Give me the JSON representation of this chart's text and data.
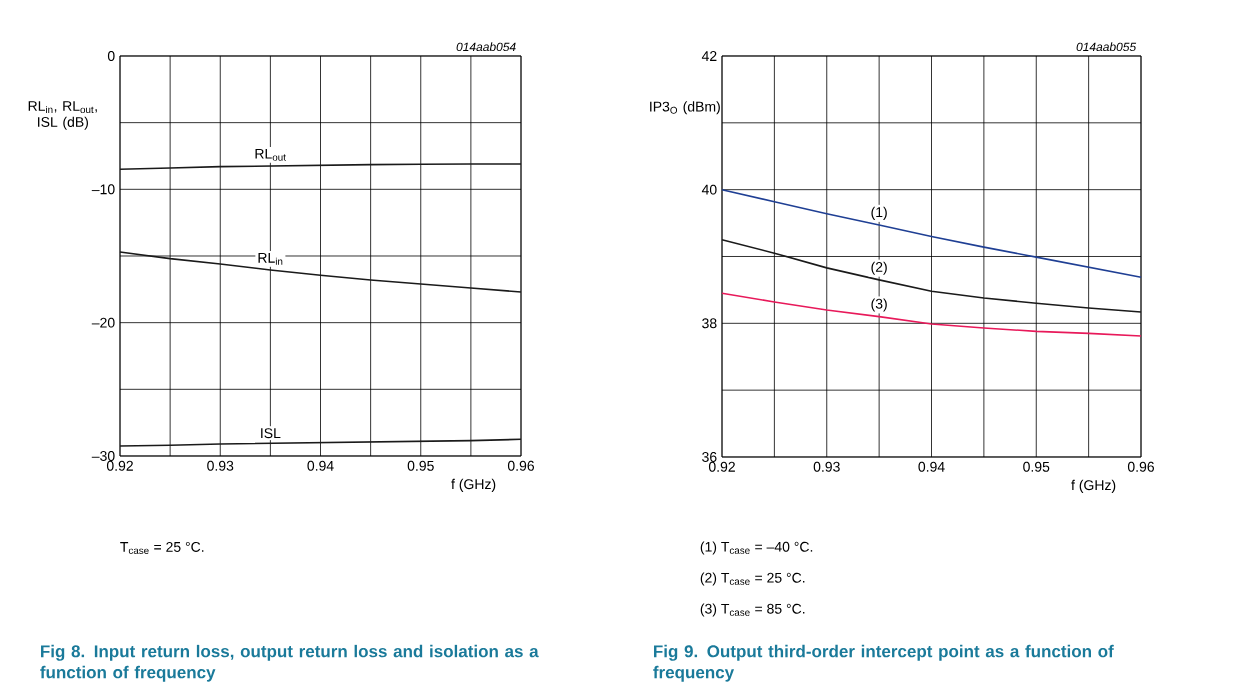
{
  "chart_data": [
    {
      "type": "line",
      "title": "Fig 8. Input return loss, output return loss and isolation as a function of frequency",
      "xlabel": "f (GHz)",
      "ylabel": "RL$_{in}$, RL$_{out}$, ISL (dB)",
      "x": [
        0.92,
        0.925,
        0.93,
        0.935,
        0.94,
        0.945,
        0.95,
        0.955,
        0.96
      ],
      "series": [
        {
          "name": "RL$_{out}$",
          "color": "#1a1a1a",
          "values": [
            -8.5,
            -8.4,
            -8.3,
            -8.25,
            -8.2,
            -8.15,
            -8.12,
            -8.1,
            -8.1
          ]
        },
        {
          "name": "RL$_{in}$",
          "color": "#1a1a1a",
          "values": [
            -14.7,
            -15.2,
            -15.6,
            -16.05,
            -16.45,
            -16.8,
            -17.1,
            -17.4,
            -17.7
          ]
        },
        {
          "name": "ISL",
          "color": "#1a1a1a",
          "values": [
            -29.25,
            -29.2,
            -29.1,
            -29.05,
            -29.0,
            -28.95,
            -28.9,
            -28.85,
            -28.75
          ]
        }
      ],
      "xlim": [
        0.92,
        0.96
      ],
      "ylim": [
        -30,
        0
      ],
      "xticks": [
        0.92,
        {
          "value": 0.925,
          "label": null
        },
        0.93,
        {
          "value": 0.935,
          "label": null
        },
        0.94,
        {
          "value": 0.945,
          "label": null
        },
        0.95,
        {
          "value": 0.955,
          "label": null
        },
        0.96
      ],
      "yticks": [
        {
          "value": -30,
          "label": "–30"
        },
        {
          "value": -25,
          "label": null
        },
        {
          "value": -20,
          "label": "–20"
        },
        {
          "value": -15,
          "label": null
        },
        {
          "value": -10,
          "label": "–10"
        },
        {
          "value": -5,
          "label": null
        },
        0
      ],
      "grid": true,
      "annotations": [
        "014aab054",
        "T$_{case}$ = 25 °C."
      ]
    },
    {
      "type": "line",
      "title": "Fig 9. Output third-order intercept point as a function of frequency",
      "xlabel": "f (GHz)",
      "ylabel": "IP3$_{O}$ (dBm)",
      "x": [
        0.92,
        0.925,
        0.93,
        0.935,
        0.94,
        0.945,
        0.95,
        0.955,
        0.96
      ],
      "series": [
        {
          "name": "(1)",
          "color": "#1f3f94",
          "values": [
            40.0,
            39.82,
            39.64,
            39.47,
            39.3,
            39.14,
            38.99,
            38.84,
            38.69
          ]
        },
        {
          "name": "(2)",
          "color": "#1a1a1a",
          "values": [
            39.25,
            39.05,
            38.83,
            38.65,
            38.48,
            38.38,
            38.3,
            38.23,
            38.17
          ]
        },
        {
          "name": "(3)",
          "color": "#e8195a",
          "values": [
            38.45,
            38.32,
            38.2,
            38.1,
            37.99,
            37.93,
            37.88,
            37.85,
            37.81
          ]
        }
      ],
      "xlim": [
        0.92,
        0.96
      ],
      "ylim": [
        36,
        42
      ],
      "xticks": [
        0.92,
        {
          "value": 0.925,
          "label": null
        },
        0.93,
        {
          "value": 0.935,
          "label": null
        },
        0.94,
        {
          "value": 0.945,
          "label": null
        },
        0.95,
        {
          "value": 0.955,
          "label": null
        },
        0.96
      ],
      "yticks": [
        36,
        {
          "value": 37,
          "label": null
        },
        38,
        {
          "value": 39,
          "label": null
        },
        40,
        {
          "value": 41,
          "label": null
        },
        42
      ],
      "grid": true,
      "annotations": [
        "014aab055",
        "(1) T$_{case}$ = –40 °C.",
        "(2) T$_{case}$ = 25 °C.",
        "(3) T$_{case}$ = 85 °C."
      ]
    }
  ]
}
